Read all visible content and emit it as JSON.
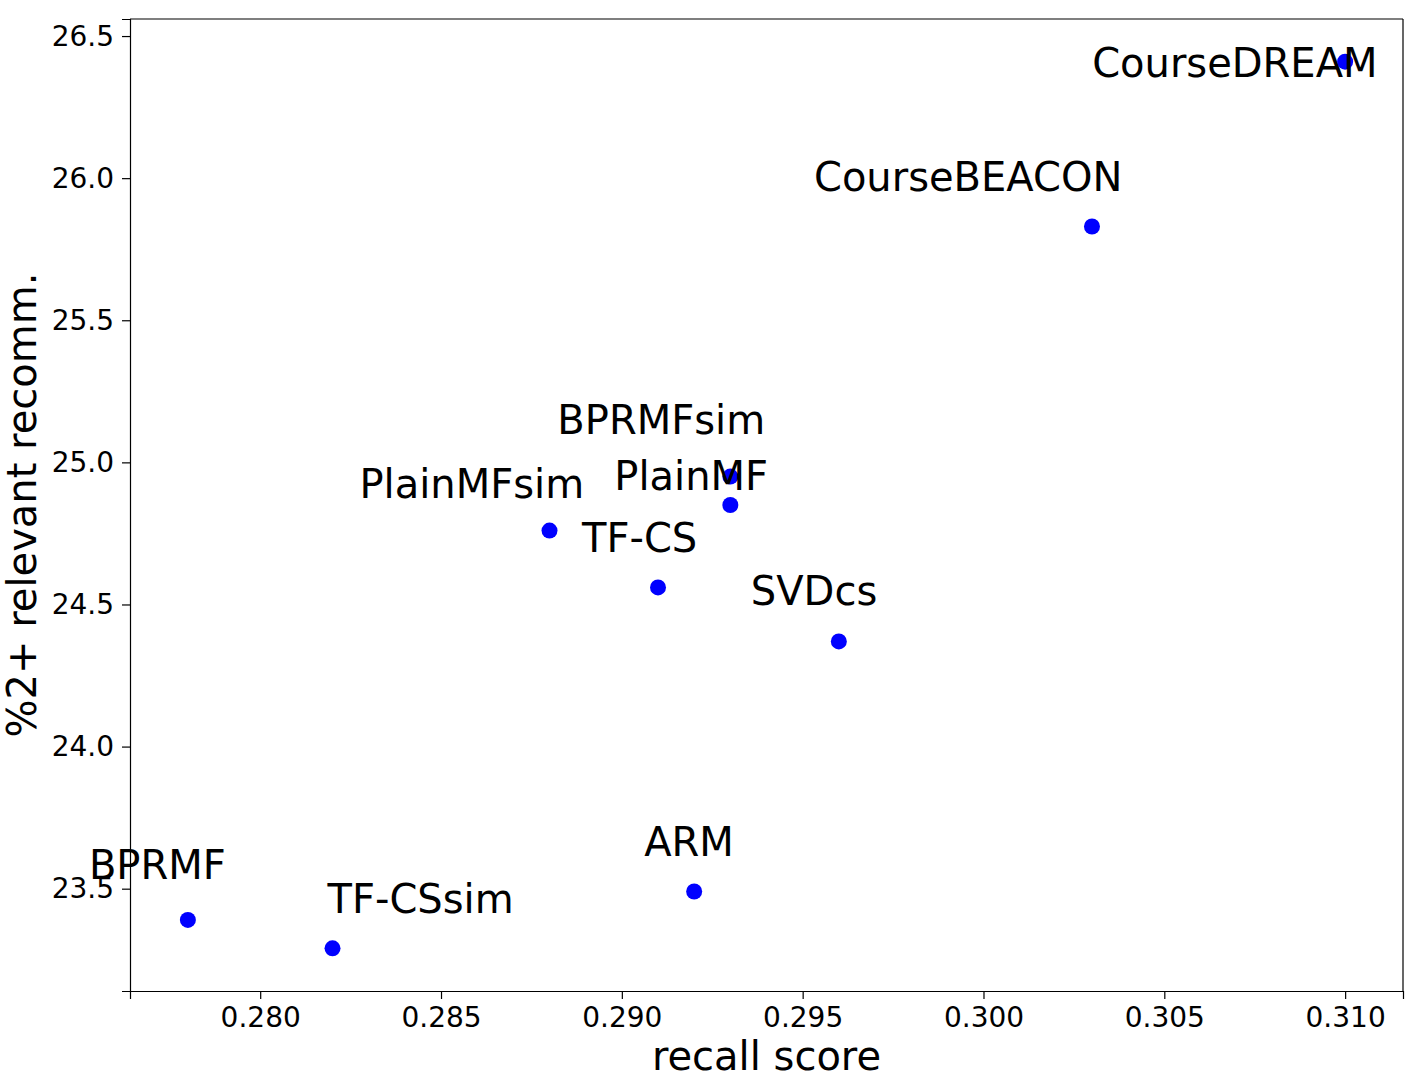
{
  "chart_data": {
    "type": "scatter",
    "x_label": "recall score",
    "y_label": "%2+ relevant recomm.",
    "annotations": [
      "CourseDREAM",
      "CourseBEACON",
      "BPRMFsim",
      "PlainMF",
      "PlainMFsim",
      "TF-CS",
      "SVDcs",
      "ARM",
      "BPRMF",
      "TF-CSsim"
    ],
    "x": [
      0.31,
      0.303,
      0.293,
      0.293,
      0.288,
      0.291,
      0.296,
      0.292,
      0.278,
      0.282
    ],
    "values": [
      26.41,
      25.83,
      24.95,
      24.85,
      24.76,
      24.56,
      24.37,
      23.49,
      23.39,
      23.29
    ],
    "color": "#0000ff",
    "marker": "circle",
    "xlim": [
      0.2764,
      0.3116
    ],
    "ylim": [
      23.14,
      26.56
    ],
    "xticks": [
      {
        "value": 0.28,
        "label": "0.280"
      },
      {
        "value": 0.285,
        "label": "0.285"
      },
      {
        "value": 0.29,
        "label": "0.290"
      },
      {
        "value": 0.295,
        "label": "0.295"
      },
      {
        "value": 0.3,
        "label": "0.300"
      },
      {
        "value": 0.305,
        "label": "0.305"
      },
      {
        "value": 0.31,
        "label": "0.310"
      }
    ],
    "yticks": [
      23.5,
      {
        "value": 24,
        "label": "24.0"
      },
      24.5,
      {
        "value": 25,
        "label": "25.0"
      },
      25.5,
      {
        "value": 26,
        "label": "26.0"
      },
      26.5
    ],
    "grid": false
  }
}
